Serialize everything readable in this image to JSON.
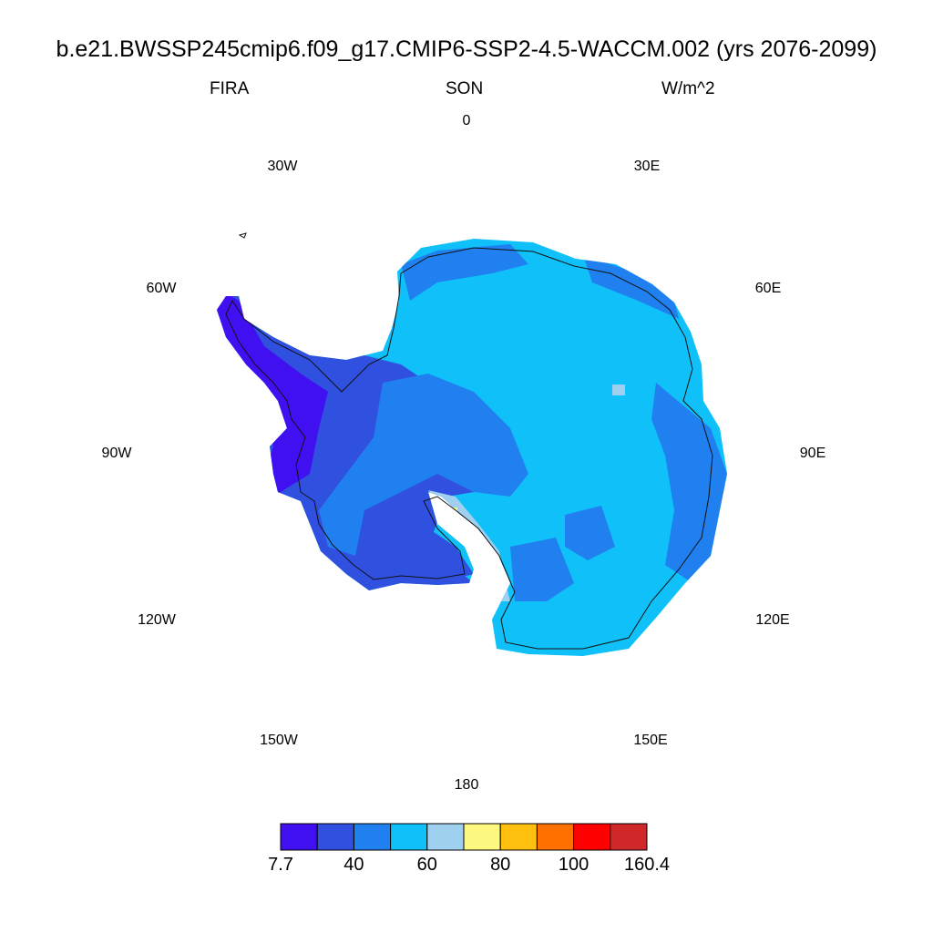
{
  "title": "b.e21.BWSSP245cmip6.f09_g17.CMIP6-SSP2-4.5-WACCM.002 (yrs 2076-2099)",
  "left_label": "FIRA",
  "center_label": "SON",
  "right_label": "W/m^2",
  "longitude_labels": {
    "lon_0": "0",
    "lon_30e": "30E",
    "lon_60e": "60E",
    "lon_90e": "90E",
    "lon_120e": "120E",
    "lon_150e": "150E",
    "lon_180": "180",
    "lon_150w": "150W",
    "lon_120w": "120W",
    "lon_90w": "90W",
    "lon_60w": "60W",
    "lon_30w": "30W"
  },
  "colorbar": {
    "colors": [
      "#4010f0",
      "#3050e0",
      "#2080f0",
      "#10c0f8",
      "#a0d0f0",
      "#fff880",
      "#ffc010",
      "#ff7000",
      "#ff0000",
      "#d02828"
    ],
    "tick_labels": [
      "7.7",
      "40",
      "60",
      "80",
      "100",
      "160.4"
    ]
  },
  "map_colors": {
    "class_20_40": "#3050e0",
    "class_7_20": "#4010f0",
    "class_40_50": "#2080f0",
    "class_50_60": "#10c0f8",
    "class_60_70": "#a0d0f0",
    "class_70_80": "#fff880"
  }
}
